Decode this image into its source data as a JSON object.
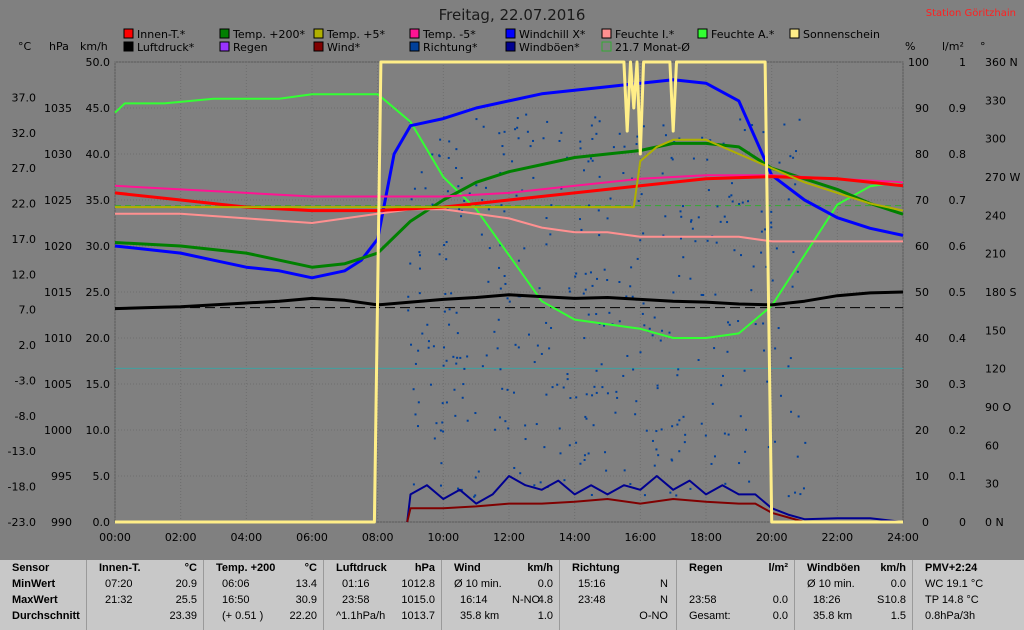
{
  "title": "Freitag, 22.07.2016",
  "station": "Station Göritzhain",
  "colors": {
    "background": "#808080",
    "grid": "#6e6e6e",
    "innen_t": "#ff0000",
    "temp200": "#008000",
    "temp5": "#b0b000",
    "temp_minus5": "#ff1493",
    "windchill": "#0000ff",
    "feuchte_i": "#ff9090",
    "feuchte_a": "#33ff33",
    "sonnenschein": "#ffee88",
    "luftdruck": "#000000",
    "regen": "#9933ff",
    "wind": "#800000",
    "richtung": "#00409a",
    "windboeen": "#000090",
    "monat": "#33aa33"
  },
  "legend": [
    {
      "key": "innen_t",
      "label": "Innen-T.*"
    },
    {
      "key": "temp200",
      "label": "Temp. +200*"
    },
    {
      "key": "temp5",
      "label": "Temp. +5*"
    },
    {
      "key": "temp_minus5",
      "label": "Temp. -5*"
    },
    {
      "key": "windchill",
      "label": "Windchill X*"
    },
    {
      "key": "feuchte_i",
      "label": "Feuchte I.*"
    },
    {
      "key": "feuchte_a",
      "label": "Feuchte A.*"
    },
    {
      "key": "sonnenschein",
      "label": "Sonnenschein"
    },
    {
      "key": "luftdruck",
      "label": "Luftdruck*"
    },
    {
      "key": "regen",
      "label": "Regen"
    },
    {
      "key": "wind",
      "label": "Wind*"
    },
    {
      "key": "richtung",
      "label": "Richtung*"
    },
    {
      "key": "windboeen",
      "label": "Windböen*"
    },
    {
      "key": "monat",
      "label": "21.7 Monat-Ø"
    }
  ],
  "units": {
    "temp": "°C",
    "press": "hPa",
    "wind": "km/h",
    "hum": "%",
    "rain": "l/m²",
    "dir": "°"
  },
  "chart_data": {
    "type": "line",
    "x_ticks": [
      "00:00",
      "02:00",
      "04:00",
      "06:00",
      "08:00",
      "10:00",
      "12:00",
      "14:00",
      "16:00",
      "18:00",
      "20:00",
      "22:00",
      "24:00"
    ],
    "temp_ticks": [
      "37.0",
      "32.0",
      "27.0",
      "22.0",
      "17.0",
      "12.0",
      "7.0",
      "2.0",
      "-3.0",
      "-8.0",
      "-13.0",
      "-18.0",
      "-23.0"
    ],
    "press_ticks": [
      "1035",
      "1030",
      "1025",
      "1020",
      "1015",
      "1010",
      "1005",
      "1000",
      "995",
      "990"
    ],
    "wind_ticks": [
      "50.0",
      "45.0",
      "40.0",
      "35.0",
      "30.0",
      "25.0",
      "20.0",
      "15.0",
      "10.0",
      "5.0",
      "0.0"
    ],
    "hum_ticks": [
      "100",
      "90",
      "80",
      "70",
      "60",
      "50",
      "40",
      "30",
      "20",
      "10",
      "0"
    ],
    "rain_ticks": [
      "1",
      "0.9",
      "0.8",
      "0.7",
      "0.6",
      "0.5",
      "0.4",
      "0.3",
      "0.2",
      "0.1",
      "0"
    ],
    "dir_ticks": [
      "360 N",
      "330",
      "300",
      "270 W",
      "240",
      "210",
      "180 S",
      "150",
      "120",
      "90 O",
      "60",
      "30",
      "0 N"
    ],
    "ranges": {
      "temp": [
        -23,
        42
      ],
      "press": [
        990,
        1040
      ],
      "wind": [
        0,
        50
      ],
      "hum": [
        0,
        100
      ],
      "x_hours": [
        0,
        24
      ]
    },
    "reference_lines": [
      {
        "name": "month_avg",
        "axis": "temp",
        "value": 21.7
      },
      {
        "name": "pressure_ref",
        "axis": "press",
        "value": 1013.3
      },
      {
        "name": "cyan_ref",
        "axis": "temp",
        "value": -1.3
      }
    ],
    "series": [
      {
        "key": "feuchte_a",
        "axis": "hum",
        "x": [
          0,
          0.3,
          1.5,
          3,
          5,
          6,
          7,
          8,
          9,
          10,
          11,
          12,
          13,
          14,
          15,
          16,
          17,
          18,
          19,
          20,
          21,
          22,
          23,
          24
        ],
        "y": [
          89,
          91,
          91,
          92,
          92,
          93,
          93,
          93,
          87,
          75,
          68,
          58,
          48,
          44,
          43,
          42,
          40,
          40,
          41,
          47,
          58,
          69,
          73,
          74
        ]
      },
      {
        "key": "windchill",
        "axis": "temp",
        "x": [
          0,
          1,
          2,
          3,
          4,
          5,
          6,
          7,
          7.5,
          8,
          8.5,
          9,
          10,
          11,
          12,
          13,
          14,
          15,
          16,
          17,
          18,
          19,
          20,
          21,
          22,
          23,
          24
        ],
        "y": [
          16,
          15.5,
          15,
          14,
          13,
          12.5,
          11.5,
          12.5,
          14,
          17,
          29,
          33,
          34,
          35.5,
          36.5,
          37.5,
          38,
          38.5,
          39,
          39.5,
          39,
          36.5,
          26,
          22.5,
          20,
          18.5,
          17.5
        ]
      },
      {
        "key": "temp200",
        "axis": "temp",
        "x": [
          0,
          2,
          4,
          6,
          7,
          8,
          9,
          10,
          11,
          12,
          13,
          14,
          15,
          16,
          17,
          18,
          19,
          20,
          21,
          22,
          23,
          24
        ],
        "y": [
          16.5,
          16,
          15,
          13,
          13.5,
          15,
          19.5,
          22.5,
          25,
          26.5,
          27.5,
          28.5,
          29,
          29.5,
          30.5,
          30.5,
          30,
          27,
          25.5,
          24,
          22,
          20.5
        ]
      },
      {
        "key": "feuchte_i",
        "axis": "hum",
        "x": [
          0,
          2,
          4,
          6,
          8,
          9,
          10,
          11,
          12,
          13,
          14,
          15,
          16,
          17,
          18,
          19,
          20,
          21,
          22,
          23,
          24
        ],
        "y": [
          67,
          67,
          66,
          65,
          67,
          68,
          68,
          67,
          66,
          64,
          63,
          63,
          62,
          62,
          62,
          62,
          61,
          61,
          61,
          61,
          61
        ]
      },
      {
        "key": "temp_minus5",
        "axis": "temp",
        "x": [
          0,
          2,
          4,
          6,
          8,
          10,
          12,
          14,
          16,
          18,
          20,
          22,
          24
        ],
        "y": [
          24.5,
          24,
          23.5,
          23,
          23,
          23,
          23.5,
          24.5,
          25.5,
          26,
          26,
          25.5,
          25
        ]
      },
      {
        "key": "innen_t",
        "axis": "temp",
        "x": [
          0,
          2,
          4,
          6,
          8,
          10,
          12,
          14,
          16,
          18,
          20,
          22,
          24
        ],
        "y": [
          23.5,
          22.5,
          21.5,
          21,
          21,
          21.5,
          22.5,
          23.5,
          24.5,
          25.5,
          25.8,
          25.5,
          24.5
        ]
      },
      {
        "key": "temp5",
        "axis": "temp",
        "x": [
          0,
          15.8,
          16,
          16.5,
          17,
          18,
          19,
          20,
          21,
          22,
          23,
          24
        ],
        "y": [
          21.5,
          21.5,
          28,
          30,
          31,
          31,
          29,
          27,
          25,
          23.5,
          22,
          21
        ]
      },
      {
        "key": "luftdruck",
        "axis": "press",
        "x": [
          0,
          1,
          2,
          3,
          4,
          5,
          6,
          7,
          8,
          9,
          10,
          11,
          12,
          13,
          14,
          15,
          16,
          17,
          18,
          19,
          20,
          21,
          22,
          23,
          24
        ],
        "y": [
          1013.2,
          1013.3,
          1013.4,
          1013.6,
          1013.8,
          1014.0,
          1014.3,
          1014.1,
          1013.6,
          1013.9,
          1014.2,
          1014.4,
          1014.7,
          1014.5,
          1014.3,
          1014.4,
          1014.2,
          1014.0,
          1013.9,
          1013.7,
          1013.6,
          1014.0,
          1014.6,
          1014.9,
          1015.0
        ]
      },
      {
        "key": "windboeen",
        "axis": "wind",
        "x": [
          8.9,
          9,
          9.5,
          10,
          10.5,
          11,
          11.5,
          12,
          12.5,
          13,
          13.5,
          14,
          14.5,
          15,
          15.5,
          16,
          16.5,
          17,
          17.5,
          18,
          18.5,
          19,
          19.5,
          20,
          20.5,
          21,
          22,
          23,
          24
        ],
        "y": [
          0,
          3,
          4,
          2.5,
          3.5,
          2,
          3,
          5,
          4,
          3.5,
          4.5,
          3,
          4,
          3,
          4,
          3.5,
          5,
          3.5,
          4.5,
          3,
          4,
          3,
          3,
          1.5,
          0.8,
          0.3,
          0.4,
          0.4,
          0
        ]
      },
      {
        "key": "wind",
        "axis": "wind",
        "x": [
          8.9,
          9,
          10,
          11,
          12,
          13,
          14,
          15,
          16,
          17,
          18,
          19,
          19.5,
          20,
          21
        ],
        "y": [
          0,
          1.5,
          1.5,
          1.7,
          2,
          2,
          2.2,
          2.5,
          2,
          2.5,
          2.2,
          2,
          2,
          1,
          0
        ]
      },
      {
        "key": "sonnenschein",
        "axis": "hum",
        "x": [
          0,
          7.9,
          8.1,
          15.5,
          15.6,
          15.7,
          15.8,
          15.9,
          16.0,
          16.1,
          16.2,
          16.9,
          17.0,
          17.1,
          17.2,
          19.8,
          20.0,
          24
        ],
        "y": [
          0,
          0,
          100,
          100,
          85,
          100,
          90,
          100,
          80,
          100,
          100,
          100,
          85,
          100,
          100,
          100,
          0,
          0
        ]
      }
    ]
  },
  "stats": {
    "sensor": {
      "title": "Sensor",
      "rows": [
        "MinWert",
        "MaxWert",
        "Durchschnitt"
      ]
    },
    "innen": {
      "title": "Innen-T.",
      "unit": "°C",
      "rows": [
        [
          "07:20",
          "20.9"
        ],
        [
          "21:32",
          "25.5"
        ],
        [
          "",
          "23.39"
        ]
      ]
    },
    "temp": {
      "title": "Temp. +200",
      "unit": "°C",
      "rows": [
        [
          "06:06",
          "13.4"
        ],
        [
          "16:50",
          "30.9"
        ],
        [
          "(+ 0.51 )",
          "22.20"
        ]
      ]
    },
    "druck": {
      "title": "Luftdruck",
      "unit": "hPa",
      "rows": [
        [
          "01:16",
          "1012.8"
        ],
        [
          "23:58",
          "1015.0"
        ],
        [
          "^1.1hPa/h",
          "1013.7"
        ]
      ]
    },
    "wind": {
      "title": "Wind",
      "unit": "km/h",
      "rows": [
        [
          "Ø 10 min.",
          "",
          "0.0"
        ],
        [
          "16:14",
          "N-NO",
          "4.8"
        ],
        [
          "35.8 km",
          "",
          "1.0"
        ]
      ]
    },
    "richtung": {
      "title": "Richtung",
      "rows": [
        [
          "15:16",
          "N"
        ],
        [
          "23:48",
          "N"
        ],
        [
          "",
          "O-NO"
        ]
      ]
    },
    "regen": {
      "title": "Regen",
      "unit": "l/m²",
      "rows": [
        [
          "",
          ""
        ],
        [
          "23:58",
          "0.0"
        ],
        [
          "Gesamt:",
          "0.0"
        ]
      ]
    },
    "boeen": {
      "title": "Windböen",
      "unit": "km/h",
      "rows": [
        [
          "Ø 10 min.",
          "",
          "0.0"
        ],
        [
          "18:26",
          "S",
          "10.8"
        ],
        [
          "35.8 km",
          "",
          "1.5"
        ]
      ]
    },
    "pmv": {
      "title": "PMV+2:24",
      "rows": [
        "WC 19.1 °C",
        "TP 14.8 °C",
        "0.8hPa/3h"
      ]
    }
  }
}
